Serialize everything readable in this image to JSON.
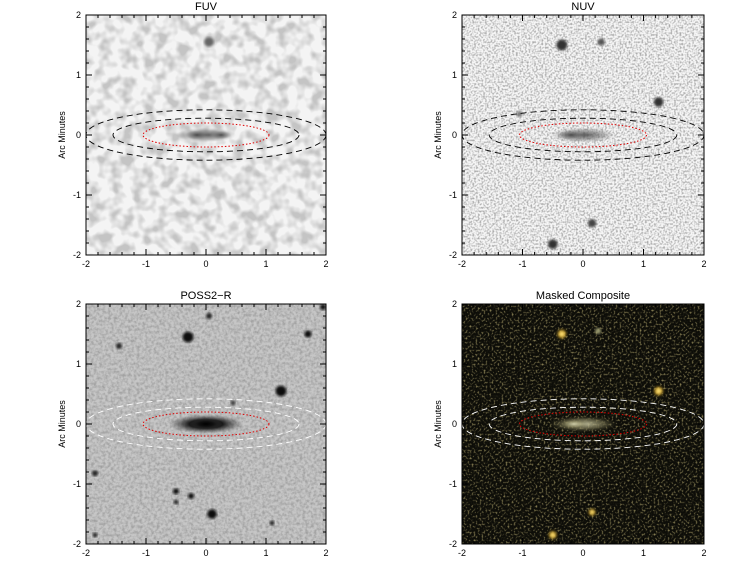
{
  "figure": {
    "panels": [
      {
        "id": "fuv",
        "title": "FUV",
        "ylabel": "Arc Minutes",
        "xticks": [
          "-2",
          "-1",
          "0",
          "1",
          "2"
        ],
        "yticks": [
          "2",
          "1",
          "0",
          "-1",
          "-2"
        ],
        "background": "light-noise",
        "dashed_ellipse_color": "#000000",
        "dotted_ellipse_color": "#e00000"
      },
      {
        "id": "nuv",
        "title": "NUV",
        "ylabel": "Arc Minutes",
        "xticks": [
          "-2",
          "-1",
          "0",
          "1",
          "2"
        ],
        "yticks": [
          "2",
          "1",
          "0",
          "-1",
          "-2"
        ],
        "background": "grainy-noise",
        "dashed_ellipse_color": "#000000",
        "dotted_ellipse_color": "#e00000"
      },
      {
        "id": "poss2r",
        "title": "POSS2−R",
        "ylabel": "Arc Minutes",
        "xticks": [
          "-2",
          "-1",
          "0",
          "1",
          "2"
        ],
        "yticks": [
          "2",
          "1",
          "0",
          "-1",
          "-2"
        ],
        "background": "grey-noise",
        "dashed_ellipse_color": "#ffffff",
        "dotted_ellipse_color": "#e00000"
      },
      {
        "id": "composite",
        "title": "Masked Composite",
        "ylabel": "Arc Minutes",
        "xticks": [
          "-2",
          "-1",
          "0",
          "1",
          "2"
        ],
        "yticks": [
          "2",
          "1",
          "0",
          "-1",
          "-2"
        ],
        "background": "dark",
        "dashed_ellipse_color": "#ffffff",
        "dotted_ellipse_color": "#e00000"
      }
    ]
  }
}
